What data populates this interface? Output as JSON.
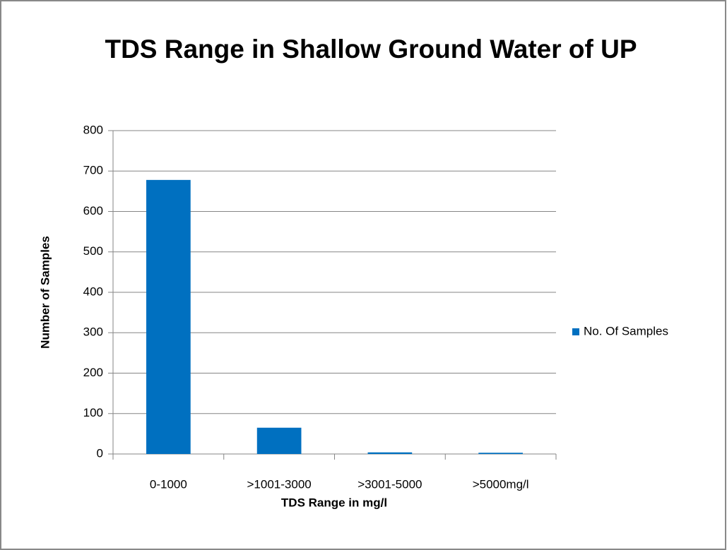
{
  "chart_data": {
    "type": "bar",
    "title": "TDS Range in Shallow Ground Water of UP",
    "x_label": "TDS Range in mg/l",
    "y_label": "Number  of  Samples",
    "categories": [
      "0-1000",
      ">1001-3000",
      ">3001-5000",
      ">5000mg/l"
    ],
    "series": [
      {
        "name": "No. Of Samples",
        "color": "#0070c0",
        "values": [
          678,
          65,
          4,
          3
        ]
      }
    ],
    "ylim": [
      0,
      800
    ],
    "yticks": [
      0,
      100,
      200,
      300,
      400,
      500,
      600,
      700,
      800
    ],
    "grid": true,
    "legend": "right"
  }
}
